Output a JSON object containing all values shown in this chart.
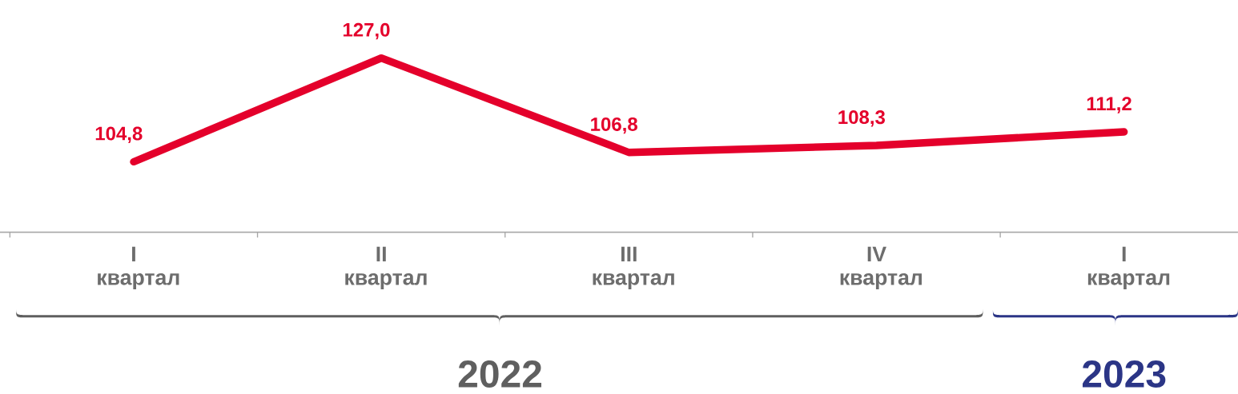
{
  "chart_data": {
    "type": "line",
    "categories": [
      "I квартал",
      "II квартал",
      "III квартал",
      "IV квартал",
      "I квартал"
    ],
    "series": [
      {
        "color": "#e4002b",
        "values": [
          104.8,
          127.0,
          106.8,
          108.3,
          111.2
        ],
        "value_labels": [
          "104,8",
          "127,0",
          "106,8",
          "108,3",
          "111,2"
        ]
      }
    ],
    "annotations": [
      "2022",
      "2023"
    ],
    "marker": "none",
    "line_style": "solid",
    "grid": false
  }
}
